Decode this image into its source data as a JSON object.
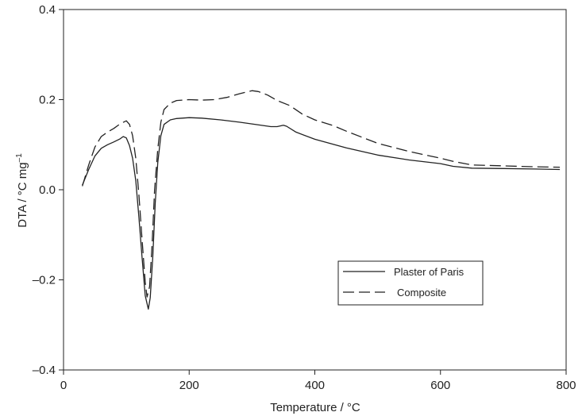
{
  "chart_data": {
    "type": "line",
    "title": "",
    "xlabel": "Temperature / °C",
    "ylabel_main": "DTA / °C mg",
    "ylabel_sup": "–1",
    "xlim": [
      0,
      800
    ],
    "ylim": [
      -0.4,
      0.4
    ],
    "x_ticks": [
      0,
      200,
      400,
      600,
      800
    ],
    "x_tick_labels": [
      "0",
      "200",
      "400",
      "600",
      "800"
    ],
    "y_ticks": [
      0.4,
      0.2,
      0.0,
      -0.2,
      -0.4
    ],
    "y_tick_labels": [
      "0.4",
      "0.2",
      "0.0",
      "–0.2",
      "–0.4"
    ],
    "grid": false,
    "legend_position": "lower-right",
    "series": [
      {
        "name": "Plaster of Paris",
        "style": "solid",
        "color": "#222222",
        "points": [
          [
            30,
            0.01
          ],
          [
            40,
            0.045
          ],
          [
            50,
            0.075
          ],
          [
            60,
            0.092
          ],
          [
            70,
            0.1
          ],
          [
            80,
            0.106
          ],
          [
            90,
            0.113
          ],
          [
            95,
            0.118
          ],
          [
            100,
            0.115
          ],
          [
            105,
            0.098
          ],
          [
            110,
            0.07
          ],
          [
            115,
            0.02
          ],
          [
            120,
            -0.06
          ],
          [
            125,
            -0.15
          ],
          [
            130,
            -0.235
          ],
          [
            135,
            -0.265
          ],
          [
            138,
            -0.24
          ],
          [
            142,
            -0.15
          ],
          [
            146,
            -0.03
          ],
          [
            150,
            0.06
          ],
          [
            155,
            0.12
          ],
          [
            160,
            0.145
          ],
          [
            170,
            0.155
          ],
          [
            180,
            0.158
          ],
          [
            200,
            0.16
          ],
          [
            220,
            0.159
          ],
          [
            250,
            0.155
          ],
          [
            280,
            0.15
          ],
          [
            300,
            0.146
          ],
          [
            320,
            0.142
          ],
          [
            330,
            0.14
          ],
          [
            340,
            0.14
          ],
          [
            350,
            0.143
          ],
          [
            355,
            0.141
          ],
          [
            370,
            0.128
          ],
          [
            400,
            0.112
          ],
          [
            450,
            0.093
          ],
          [
            500,
            0.077
          ],
          [
            550,
            0.066
          ],
          [
            600,
            0.058
          ],
          [
            620,
            0.052
          ],
          [
            650,
            0.048
          ],
          [
            700,
            0.047
          ],
          [
            750,
            0.046
          ],
          [
            790,
            0.045
          ]
        ]
      },
      {
        "name": "Composite",
        "style": "dashed",
        "color": "#222222",
        "points": [
          [
            30,
            0.008
          ],
          [
            40,
            0.055
          ],
          [
            50,
            0.095
          ],
          [
            60,
            0.118
          ],
          [
            70,
            0.128
          ],
          [
            80,
            0.136
          ],
          [
            90,
            0.146
          ],
          [
            100,
            0.153
          ],
          [
            105,
            0.145
          ],
          [
            110,
            0.12
          ],
          [
            115,
            0.07
          ],
          [
            120,
            -0.01
          ],
          [
            125,
            -0.11
          ],
          [
            130,
            -0.205
          ],
          [
            133,
            -0.238
          ],
          [
            137,
            -0.215
          ],
          [
            141,
            -0.12
          ],
          [
            145,
            0.0
          ],
          [
            150,
            0.09
          ],
          [
            155,
            0.15
          ],
          [
            160,
            0.178
          ],
          [
            170,
            0.192
          ],
          [
            180,
            0.198
          ],
          [
            200,
            0.2
          ],
          [
            220,
            0.199
          ],
          [
            240,
            0.2
          ],
          [
            260,
            0.205
          ],
          [
            280,
            0.213
          ],
          [
            300,
            0.22
          ],
          [
            310,
            0.218
          ],
          [
            325,
            0.21
          ],
          [
            340,
            0.198
          ],
          [
            360,
            0.187
          ],
          [
            380,
            0.168
          ],
          [
            400,
            0.155
          ],
          [
            430,
            0.142
          ],
          [
            450,
            0.13
          ],
          [
            500,
            0.103
          ],
          [
            550,
            0.085
          ],
          [
            600,
            0.07
          ],
          [
            620,
            0.063
          ],
          [
            650,
            0.055
          ],
          [
            700,
            0.053
          ],
          [
            750,
            0.051
          ],
          [
            790,
            0.05
          ]
        ]
      }
    ]
  }
}
